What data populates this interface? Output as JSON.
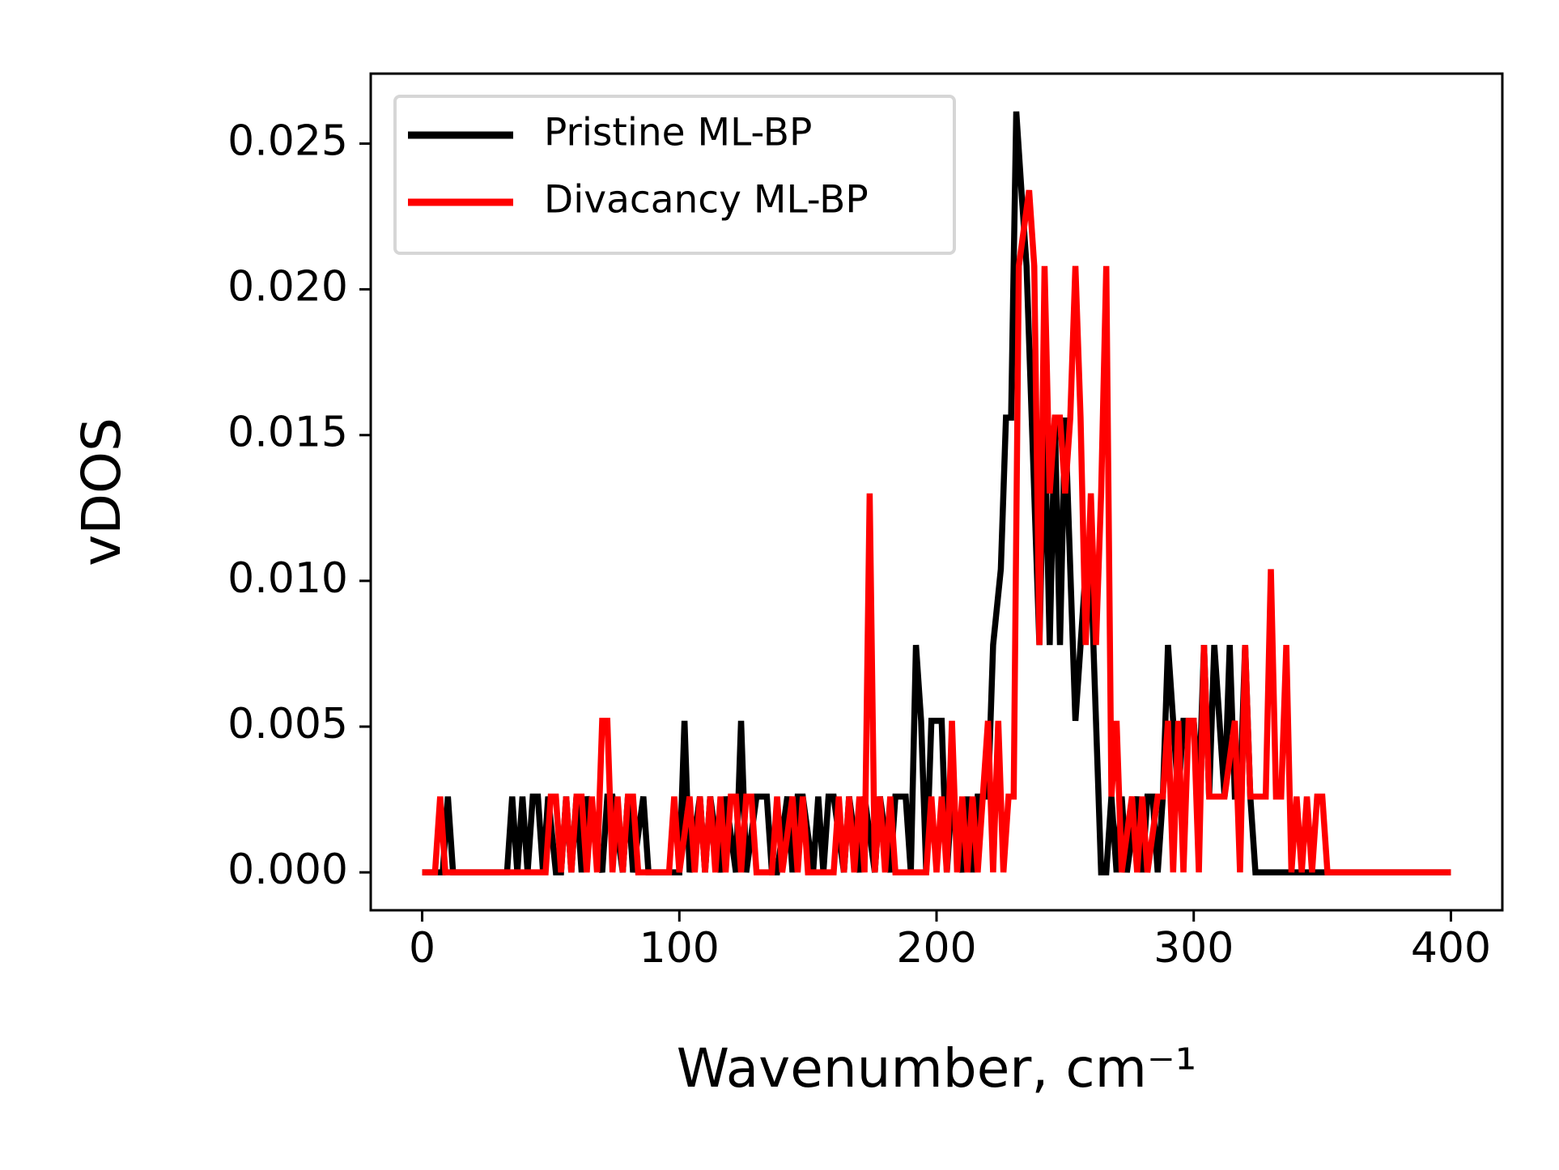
{
  "chart_data": {
    "type": "line",
    "xlabel": "Wavenumber, cm⁻¹",
    "ylabel": "vDOS",
    "xlim": [
      -20,
      420
    ],
    "xticks": [
      0,
      100,
      200,
      300,
      400
    ],
    "ylim": [
      -0.0013,
      0.0274
    ],
    "yticks": [
      {
        "value": 0,
        "label": "0.000"
      },
      {
        "value": 0.005,
        "label": "0.005"
      },
      {
        "value": 0.01,
        "label": "0.010"
      },
      {
        "value": 0.015,
        "label": "0.015"
      },
      {
        "value": 0.02,
        "label": "0.020"
      },
      {
        "value": 0.025,
        "label": "0.025"
      }
    ],
    "legend": "upper left",
    "grid": false,
    "series": [
      {
        "name": "Pristine ML-BP",
        "color": "#000000",
        "x": [
          0,
          8,
          10,
          12,
          33,
          35,
          37,
          39,
          41,
          43,
          45,
          47,
          49,
          52,
          54,
          56,
          58,
          60,
          62,
          64,
          70,
          72,
          74,
          78,
          80,
          82,
          86,
          88,
          100,
          102,
          104,
          108,
          110,
          112,
          116,
          118,
          122,
          124,
          126,
          130,
          132,
          134,
          136,
          138,
          142,
          144,
          146,
          148,
          152,
          154,
          156,
          158,
          160,
          164,
          166,
          170,
          172,
          176,
          178,
          182,
          184,
          188,
          190,
          192,
          194,
          196,
          198,
          200,
          202,
          204,
          206,
          210,
          212,
          214,
          216,
          218,
          220,
          222,
          225,
          227,
          229,
          231,
          233,
          235,
          237,
          240,
          242,
          244,
          246,
          248,
          250,
          252,
          254,
          256,
          258,
          260,
          262,
          264,
          266,
          268,
          270,
          272,
          274,
          278,
          280,
          282,
          284,
          286,
          288,
          290,
          292,
          294,
          296,
          300,
          302,
          304,
          306,
          308,
          310,
          312,
          314,
          316,
          318,
          320,
          322,
          324,
          326,
          340,
          400
        ],
        "values": [
          0,
          0,
          0.0026,
          0,
          0,
          0.0026,
          0,
          0.0026,
          0,
          0.0026,
          0.0026,
          0,
          0.0026,
          0,
          0,
          0.0026,
          0,
          0.0026,
          0,
          0.0026,
          0,
          0.0026,
          0.0026,
          0,
          0.0026,
          0,
          0.0026,
          0,
          0,
          0.0052,
          0,
          0.0026,
          0,
          0.0026,
          0,
          0.0026,
          0,
          0.0052,
          0,
          0.0026,
          0.0026,
          0.0026,
          0,
          0,
          0.0026,
          0,
          0.0026,
          0.0026,
          0,
          0.0026,
          0,
          0.0026,
          0.0026,
          0,
          0.0026,
          0,
          0.0026,
          0,
          0.0026,
          0,
          0.0026,
          0.0026,
          0,
          0.0078,
          0.0052,
          0,
          0.0052,
          0.0052,
          0.0052,
          0,
          0.0026,
          0,
          0.0026,
          0,
          0.0026,
          0.0026,
          0.0026,
          0.0078,
          0.0104,
          0.0156,
          0.0156,
          0.0261,
          0.0234,
          0.0208,
          0.0156,
          0.0078,
          0.0156,
          0.0078,
          0.0156,
          0.0078,
          0.0156,
          0.0104,
          0.0052,
          0.0078,
          0.0104,
          0.0104,
          0.0052,
          0,
          0,
          0.0026,
          0,
          0.0026,
          0,
          0.0026,
          0,
          0.0026,
          0.0026,
          0,
          0.0026,
          0.0078,
          0.0052,
          0.0026,
          0.0052,
          0.0052,
          0.0026,
          0.0078,
          0.0026,
          0.0078,
          0.0052,
          0.0026,
          0.0078,
          0.0026,
          0.0026,
          0.0078,
          0.0026,
          0,
          0,
          0,
          0
        ]
      },
      {
        "name": "Divacancy ML-BP",
        "color": "#ff0000",
        "x": [
          0,
          5,
          7,
          9,
          48,
          50,
          52,
          54,
          56,
          58,
          60,
          62,
          64,
          66,
          68,
          70,
          72,
          74,
          76,
          78,
          80,
          82,
          84,
          96,
          98,
          100,
          104,
          106,
          108,
          110,
          112,
          114,
          116,
          118,
          120,
          122,
          124,
          126,
          128,
          130,
          136,
          138,
          140,
          144,
          146,
          148,
          150,
          160,
          162,
          164,
          166,
          168,
          170,
          172,
          174,
          176,
          178,
          180,
          182,
          184,
          196,
          198,
          200,
          202,
          204,
          206,
          208,
          210,
          212,
          214,
          216,
          218,
          220,
          222,
          224,
          226,
          228,
          230,
          232,
          236,
          238,
          240,
          242,
          244,
          246,
          248,
          250,
          252,
          254,
          256,
          258,
          260,
          262,
          264,
          266,
          268,
          270,
          272,
          276,
          278,
          280,
          282,
          286,
          288,
          290,
          292,
          294,
          296,
          298,
          300,
          302,
          304,
          306,
          308,
          310,
          312,
          316,
          318,
          320,
          322,
          326,
          328,
          330,
          332,
          334,
          336,
          338,
          340,
          342,
          344,
          346,
          348,
          350,
          352,
          400
        ],
        "values": [
          0,
          0,
          0.0026,
          0,
          0,
          0.0026,
          0.0026,
          0,
          0.0026,
          0,
          0.0026,
          0.0026,
          0,
          0.0026,
          0,
          0.0052,
          0.0052,
          0,
          0.0026,
          0,
          0.0026,
          0.0026,
          0,
          0,
          0.0026,
          0,
          0.0026,
          0,
          0.0026,
          0,
          0.0026,
          0,
          0.0026,
          0,
          0.0026,
          0.0026,
          0,
          0.0026,
          0.0026,
          0,
          0,
          0.0026,
          0,
          0.0026,
          0,
          0.0026,
          0,
          0,
          0.0026,
          0,
          0.0026,
          0,
          0.0026,
          0,
          0.013,
          0,
          0.0026,
          0,
          0.0026,
          0,
          0,
          0.0026,
          0,
          0.0026,
          0,
          0.0052,
          0,
          0.0026,
          0,
          0.0026,
          0,
          0.0026,
          0.0052,
          0,
          0.0052,
          0,
          0.0026,
          0.0026,
          0.0208,
          0.0234,
          0.0208,
          0.0078,
          0.0208,
          0.013,
          0.0156,
          0.0156,
          0.013,
          0.0156,
          0.0208,
          0.0156,
          0.0078,
          0.013,
          0.0078,
          0.013,
          0.0208,
          0.0026,
          0.0052,
          0,
          0.0026,
          0,
          0.0026,
          0,
          0.0026,
          0.0026,
          0.0052,
          0,
          0.0052,
          0,
          0.0052,
          0.0052,
          0,
          0.0078,
          0.0026,
          0.0026,
          0.0026,
          0.0026,
          0.0052,
          0,
          0.0078,
          0.0026,
          0.0026,
          0.0026,
          0.0104,
          0.0026,
          0.0026,
          0.0078,
          0,
          0.0026,
          0,
          0.0026,
          0,
          0.0026,
          0.0026,
          0,
          0
        ]
      }
    ]
  }
}
